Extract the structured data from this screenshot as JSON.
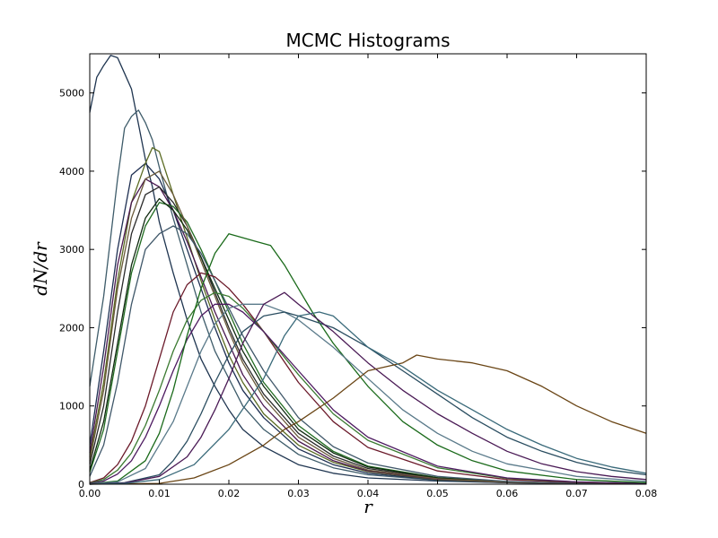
{
  "chart_data": {
    "type": "line",
    "title": "MCMC Histograms",
    "xlabel": "r",
    "ylabel": "dN/dr",
    "xlim": [
      0.0,
      0.08
    ],
    "ylim": [
      0,
      5500
    ],
    "xticks": [
      0.0,
      0.01,
      0.02,
      0.03,
      0.04,
      0.05,
      0.06,
      0.07,
      0.08
    ],
    "xtick_labels": [
      "0.00",
      "0.01",
      "0.02",
      "0.03",
      "0.04",
      "0.05",
      "0.06",
      "0.07",
      "0.08"
    ],
    "yticks": [
      0,
      1000,
      2000,
      3000,
      4000,
      5000
    ],
    "ytick_labels": [
      "0",
      "1000",
      "2000",
      "3000",
      "4000",
      "5000"
    ],
    "grid": false,
    "legend": "none",
    "series": [
      {
        "color": "#1f3550",
        "x": [
          0,
          0.001,
          0.002,
          0.003,
          0.004,
          0.005,
          0.006,
          0.007,
          0.008,
          0.009,
          0.01,
          0.012,
          0.014,
          0.016,
          0.018,
          0.02,
          0.022,
          0.025,
          0.03,
          0.035,
          0.04,
          0.05,
          0.06,
          0.07,
          0.08
        ],
        "y": [
          4750,
          5200,
          5350,
          5480,
          5450,
          5250,
          5050,
          4600,
          4150,
          3800,
          3350,
          2700,
          2100,
          1600,
          1250,
          950,
          700,
          480,
          250,
          140,
          80,
          40,
          20,
          10,
          5
        ]
      },
      {
        "color": "#3e5c6a",
        "x": [
          0,
          0.002,
          0.004,
          0.005,
          0.006,
          0.007,
          0.008,
          0.009,
          0.01,
          0.012,
          0.014,
          0.016,
          0.018,
          0.02,
          0.022,
          0.025,
          0.03,
          0.035,
          0.04,
          0.05,
          0.06,
          0.07,
          0.08
        ],
        "y": [
          1250,
          2400,
          3900,
          4550,
          4700,
          4780,
          4620,
          4400,
          4050,
          3400,
          2800,
          2200,
          1700,
          1350,
          1000,
          700,
          380,
          210,
          120,
          50,
          20,
          10,
          5
        ]
      },
      {
        "color": "#1e2f52",
        "x": [
          0,
          0.002,
          0.004,
          0.006,
          0.008,
          0.01,
          0.012,
          0.014,
          0.016,
          0.018,
          0.02,
          0.022,
          0.025,
          0.03,
          0.035,
          0.04,
          0.05,
          0.06,
          0.07,
          0.08
        ],
        "y": [
          500,
          1700,
          3000,
          3950,
          4100,
          3900,
          3500,
          3000,
          2500,
          2000,
          1550,
          1200,
          850,
          450,
          250,
          140,
          55,
          20,
          10,
          5
        ]
      },
      {
        "color": "#5a6a22",
        "x": [
          0,
          0.002,
          0.004,
          0.006,
          0.008,
          0.009,
          0.01,
          0.012,
          0.014,
          0.016,
          0.018,
          0.02,
          0.022,
          0.025,
          0.03,
          0.035,
          0.04,
          0.05,
          0.06,
          0.07,
          0.08
        ],
        "y": [
          350,
          1300,
          2600,
          3600,
          4100,
          4300,
          4250,
          3700,
          3150,
          2600,
          2100,
          1650,
          1300,
          900,
          500,
          280,
          160,
          60,
          25,
          10,
          5
        ]
      },
      {
        "color": "#4a1850",
        "x": [
          0,
          0.002,
          0.004,
          0.006,
          0.008,
          0.01,
          0.012,
          0.014,
          0.016,
          0.018,
          0.02,
          0.022,
          0.025,
          0.03,
          0.035,
          0.04,
          0.05,
          0.06,
          0.07,
          0.08
        ],
        "y": [
          400,
          1500,
          2800,
          3600,
          3900,
          3800,
          3500,
          3100,
          2650,
          2200,
          1800,
          1400,
          1000,
          550,
          300,
          170,
          65,
          25,
          10,
          5
        ]
      },
      {
        "color": "#2a2a2a",
        "x": [
          0,
          0.002,
          0.004,
          0.006,
          0.008,
          0.01,
          0.012,
          0.014,
          0.016,
          0.018,
          0.02,
          0.022,
          0.025,
          0.03,
          0.035,
          0.04,
          0.05,
          0.06,
          0.07,
          0.08
        ],
        "y": [
          250,
          1000,
          2200,
          3200,
          3700,
          3800,
          3600,
          3300,
          2900,
          2450,
          2000,
          1600,
          1150,
          650,
          360,
          200,
          75,
          30,
          12,
          5
        ]
      },
      {
        "color": "#206b20",
        "x": [
          0,
          0.002,
          0.004,
          0.006,
          0.008,
          0.01,
          0.012,
          0.014,
          0.016,
          0.018,
          0.02,
          0.022,
          0.025,
          0.03,
          0.035,
          0.04,
          0.05,
          0.06,
          0.07,
          0.08
        ],
        "y": [
          150,
          700,
          1700,
          2700,
          3300,
          3600,
          3550,
          3350,
          3000,
          2600,
          2200,
          1800,
          1300,
          750,
          420,
          230,
          85,
          30,
          12,
          5
        ]
      },
      {
        "color": "#102a10",
        "x": [
          0,
          0.002,
          0.004,
          0.006,
          0.008,
          0.01,
          0.012,
          0.014,
          0.016,
          0.018,
          0.02,
          0.022,
          0.025,
          0.03,
          0.035,
          0.04,
          0.05,
          0.06,
          0.07,
          0.08
        ],
        "y": [
          180,
          800,
          1800,
          2800,
          3400,
          3650,
          3500,
          3250,
          2900,
          2500,
          2100,
          1700,
          1250,
          700,
          400,
          220,
          80,
          30,
          12,
          5
        ]
      },
      {
        "color": "#6a5a3a",
        "x": [
          0,
          0.002,
          0.004,
          0.006,
          0.008,
          0.01,
          0.012,
          0.014,
          0.016,
          0.018,
          0.02,
          0.022,
          0.025,
          0.03,
          0.035,
          0.04,
          0.05,
          0.06,
          0.07,
          0.08
        ],
        "y": [
          300,
          1200,
          2500,
          3400,
          3900,
          4000,
          3700,
          3300,
          2850,
          2400,
          1950,
          1550,
          1100,
          600,
          330,
          180,
          70,
          25,
          10,
          5
        ]
      },
      {
        "color": "#40586a",
        "x": [
          0,
          0.002,
          0.004,
          0.006,
          0.008,
          0.01,
          0.012,
          0.014,
          0.016,
          0.018,
          0.02,
          0.022,
          0.025,
          0.03,
          0.035,
          0.04,
          0.05,
          0.06,
          0.07,
          0.08
        ],
        "y": [
          100,
          500,
          1300,
          2300,
          3000,
          3200,
          3300,
          3200,
          2950,
          2600,
          2250,
          1900,
          1450,
          850,
          480,
          270,
          100,
          35,
          12,
          5
        ]
      },
      {
        "color": "#6b1a2a",
        "x": [
          0,
          0.002,
          0.004,
          0.006,
          0.008,
          0.01,
          0.012,
          0.014,
          0.016,
          0.018,
          0.02,
          0.022,
          0.025,
          0.03,
          0.035,
          0.04,
          0.05,
          0.06,
          0.07,
          0.08
        ],
        "y": [
          20,
          80,
          250,
          550,
          1000,
          1600,
          2200,
          2550,
          2700,
          2650,
          2500,
          2300,
          1950,
          1300,
          800,
          470,
          170,
          60,
          22,
          8
        ]
      },
      {
        "color": "#3a7a30",
        "x": [
          0,
          0.002,
          0.004,
          0.006,
          0.008,
          0.01,
          0.012,
          0.014,
          0.016,
          0.018,
          0.02,
          0.022,
          0.025,
          0.03,
          0.035,
          0.04,
          0.05,
          0.06,
          0.07,
          0.08
        ],
        "y": [
          15,
          60,
          180,
          400,
          750,
          1200,
          1700,
          2100,
          2350,
          2450,
          2400,
          2250,
          1950,
          1400,
          900,
          560,
          210,
          75,
          28,
          10
        ]
      },
      {
        "color": "#4d1a60",
        "x": [
          0,
          0.002,
          0.004,
          0.006,
          0.008,
          0.01,
          0.012,
          0.014,
          0.016,
          0.018,
          0.02,
          0.022,
          0.025,
          0.03,
          0.035,
          0.04,
          0.05,
          0.06,
          0.07,
          0.08
        ],
        "y": [
          10,
          40,
          130,
          300,
          600,
          1000,
          1450,
          1850,
          2150,
          2300,
          2300,
          2200,
          1950,
          1450,
          950,
          600,
          230,
          80,
          30,
          10
        ]
      },
      {
        "color": "#1a6a1a",
        "x": [
          0,
          0.004,
          0.008,
          0.01,
          0.012,
          0.014,
          0.016,
          0.018,
          0.02,
          0.022,
          0.024,
          0.026,
          0.028,
          0.03,
          0.032,
          0.035,
          0.04,
          0.045,
          0.05,
          0.055,
          0.06,
          0.07,
          0.08
        ],
        "y": [
          5,
          40,
          300,
          650,
          1200,
          1900,
          2500,
          2950,
          3200,
          3150,
          3100,
          3050,
          2800,
          2500,
          2200,
          1800,
          1250,
          800,
          500,
          300,
          170,
          60,
          20
        ]
      },
      {
        "color": "#5a7a8a",
        "x": [
          0,
          0.004,
          0.008,
          0.012,
          0.014,
          0.016,
          0.018,
          0.02,
          0.022,
          0.025,
          0.028,
          0.03,
          0.035,
          0.04,
          0.045,
          0.05,
          0.055,
          0.06,
          0.07,
          0.08
        ],
        "y": [
          5,
          30,
          200,
          800,
          1250,
          1700,
          2050,
          2250,
          2300,
          2300,
          2200,
          2100,
          1750,
          1350,
          950,
          650,
          420,
          260,
          100,
          35
        ]
      },
      {
        "color": "#2a4d60",
        "x": [
          0,
          0.005,
          0.01,
          0.012,
          0.014,
          0.016,
          0.018,
          0.02,
          0.022,
          0.025,
          0.028,
          0.03,
          0.035,
          0.04,
          0.045,
          0.05,
          0.055,
          0.06,
          0.065,
          0.07,
          0.075,
          0.08
        ],
        "y": [
          0,
          20,
          120,
          300,
          550,
          900,
          1300,
          1650,
          1950,
          2150,
          2200,
          2150,
          2000,
          1750,
          1450,
          1150,
          850,
          600,
          420,
          280,
          180,
          120
        ]
      },
      {
        "color": "#4a1a55",
        "x": [
          0,
          0.005,
          0.01,
          0.014,
          0.016,
          0.018,
          0.02,
          0.022,
          0.025,
          0.028,
          0.03,
          0.035,
          0.04,
          0.045,
          0.05,
          0.055,
          0.06,
          0.065,
          0.07,
          0.075,
          0.08
        ],
        "y": [
          0,
          15,
          100,
          350,
          600,
          950,
          1350,
          1800,
          2300,
          2450,
          2300,
          1950,
          1550,
          1200,
          900,
          650,
          420,
          260,
          160,
          100,
          60
        ]
      },
      {
        "color": "#6a4515",
        "x": [
          0,
          0.01,
          0.015,
          0.02,
          0.025,
          0.028,
          0.03,
          0.035,
          0.04,
          0.045,
          0.047,
          0.05,
          0.055,
          0.06,
          0.065,
          0.07,
          0.075,
          0.08
        ],
        "y": [
          0,
          10,
          80,
          250,
          500,
          700,
          800,
          1100,
          1450,
          1550,
          1650,
          1600,
          1550,
          1450,
          1250,
          1000,
          800,
          650
        ]
      },
      {
        "color": "#3a6a7a",
        "x": [
          0,
          0.005,
          0.01,
          0.015,
          0.02,
          0.025,
          0.028,
          0.03,
          0.033,
          0.035,
          0.04,
          0.045,
          0.05,
          0.055,
          0.06,
          0.065,
          0.07,
          0.075,
          0.08
        ],
        "y": [
          0,
          10,
          60,
          250,
          700,
          1350,
          1900,
          2150,
          2200,
          2150,
          1750,
          1500,
          1200,
          950,
          700,
          500,
          330,
          220,
          140
        ]
      }
    ]
  }
}
